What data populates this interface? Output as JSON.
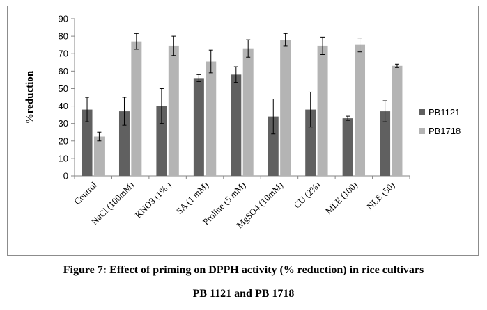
{
  "chart_data": {
    "type": "bar",
    "categories": [
      "Control",
      "NaCl (100mM)",
      "KNO3 (1% )",
      "SA (1 mM)",
      "Proline (5 mM)",
      "MgSO4 (10mM)",
      "CU (2%)",
      "MLE (100)",
      "NLE (50)"
    ],
    "series": [
      {
        "name": "PB1121",
        "color": "#606060",
        "values": [
          38,
          37,
          40,
          56,
          58,
          34,
          38,
          33,
          37
        ],
        "errors": [
          7,
          8,
          10,
          2,
          4.5,
          10,
          10,
          1.2,
          6
        ]
      },
      {
        "name": "PB1718",
        "color": "#b4b4b4",
        "values": [
          22.5,
          77,
          74.5,
          65.5,
          73,
          78,
          74.5,
          75,
          63
        ],
        "errors": [
          2.5,
          4.5,
          5.5,
          6.5,
          5,
          3.5,
          5,
          4,
          1
        ]
      }
    ],
    "ylabel": "%reduction",
    "ylim": [
      0,
      90
    ],
    "yticks": [
      0,
      10,
      20,
      30,
      40,
      50,
      60,
      70,
      80,
      90
    ],
    "grid": false,
    "legend_position": "right"
  },
  "caption": {
    "line1": "Figure 7: Effect of priming on DPPH activity (% reduction) in rice cultivars",
    "line2": "PB 1121 and PB 1718"
  }
}
